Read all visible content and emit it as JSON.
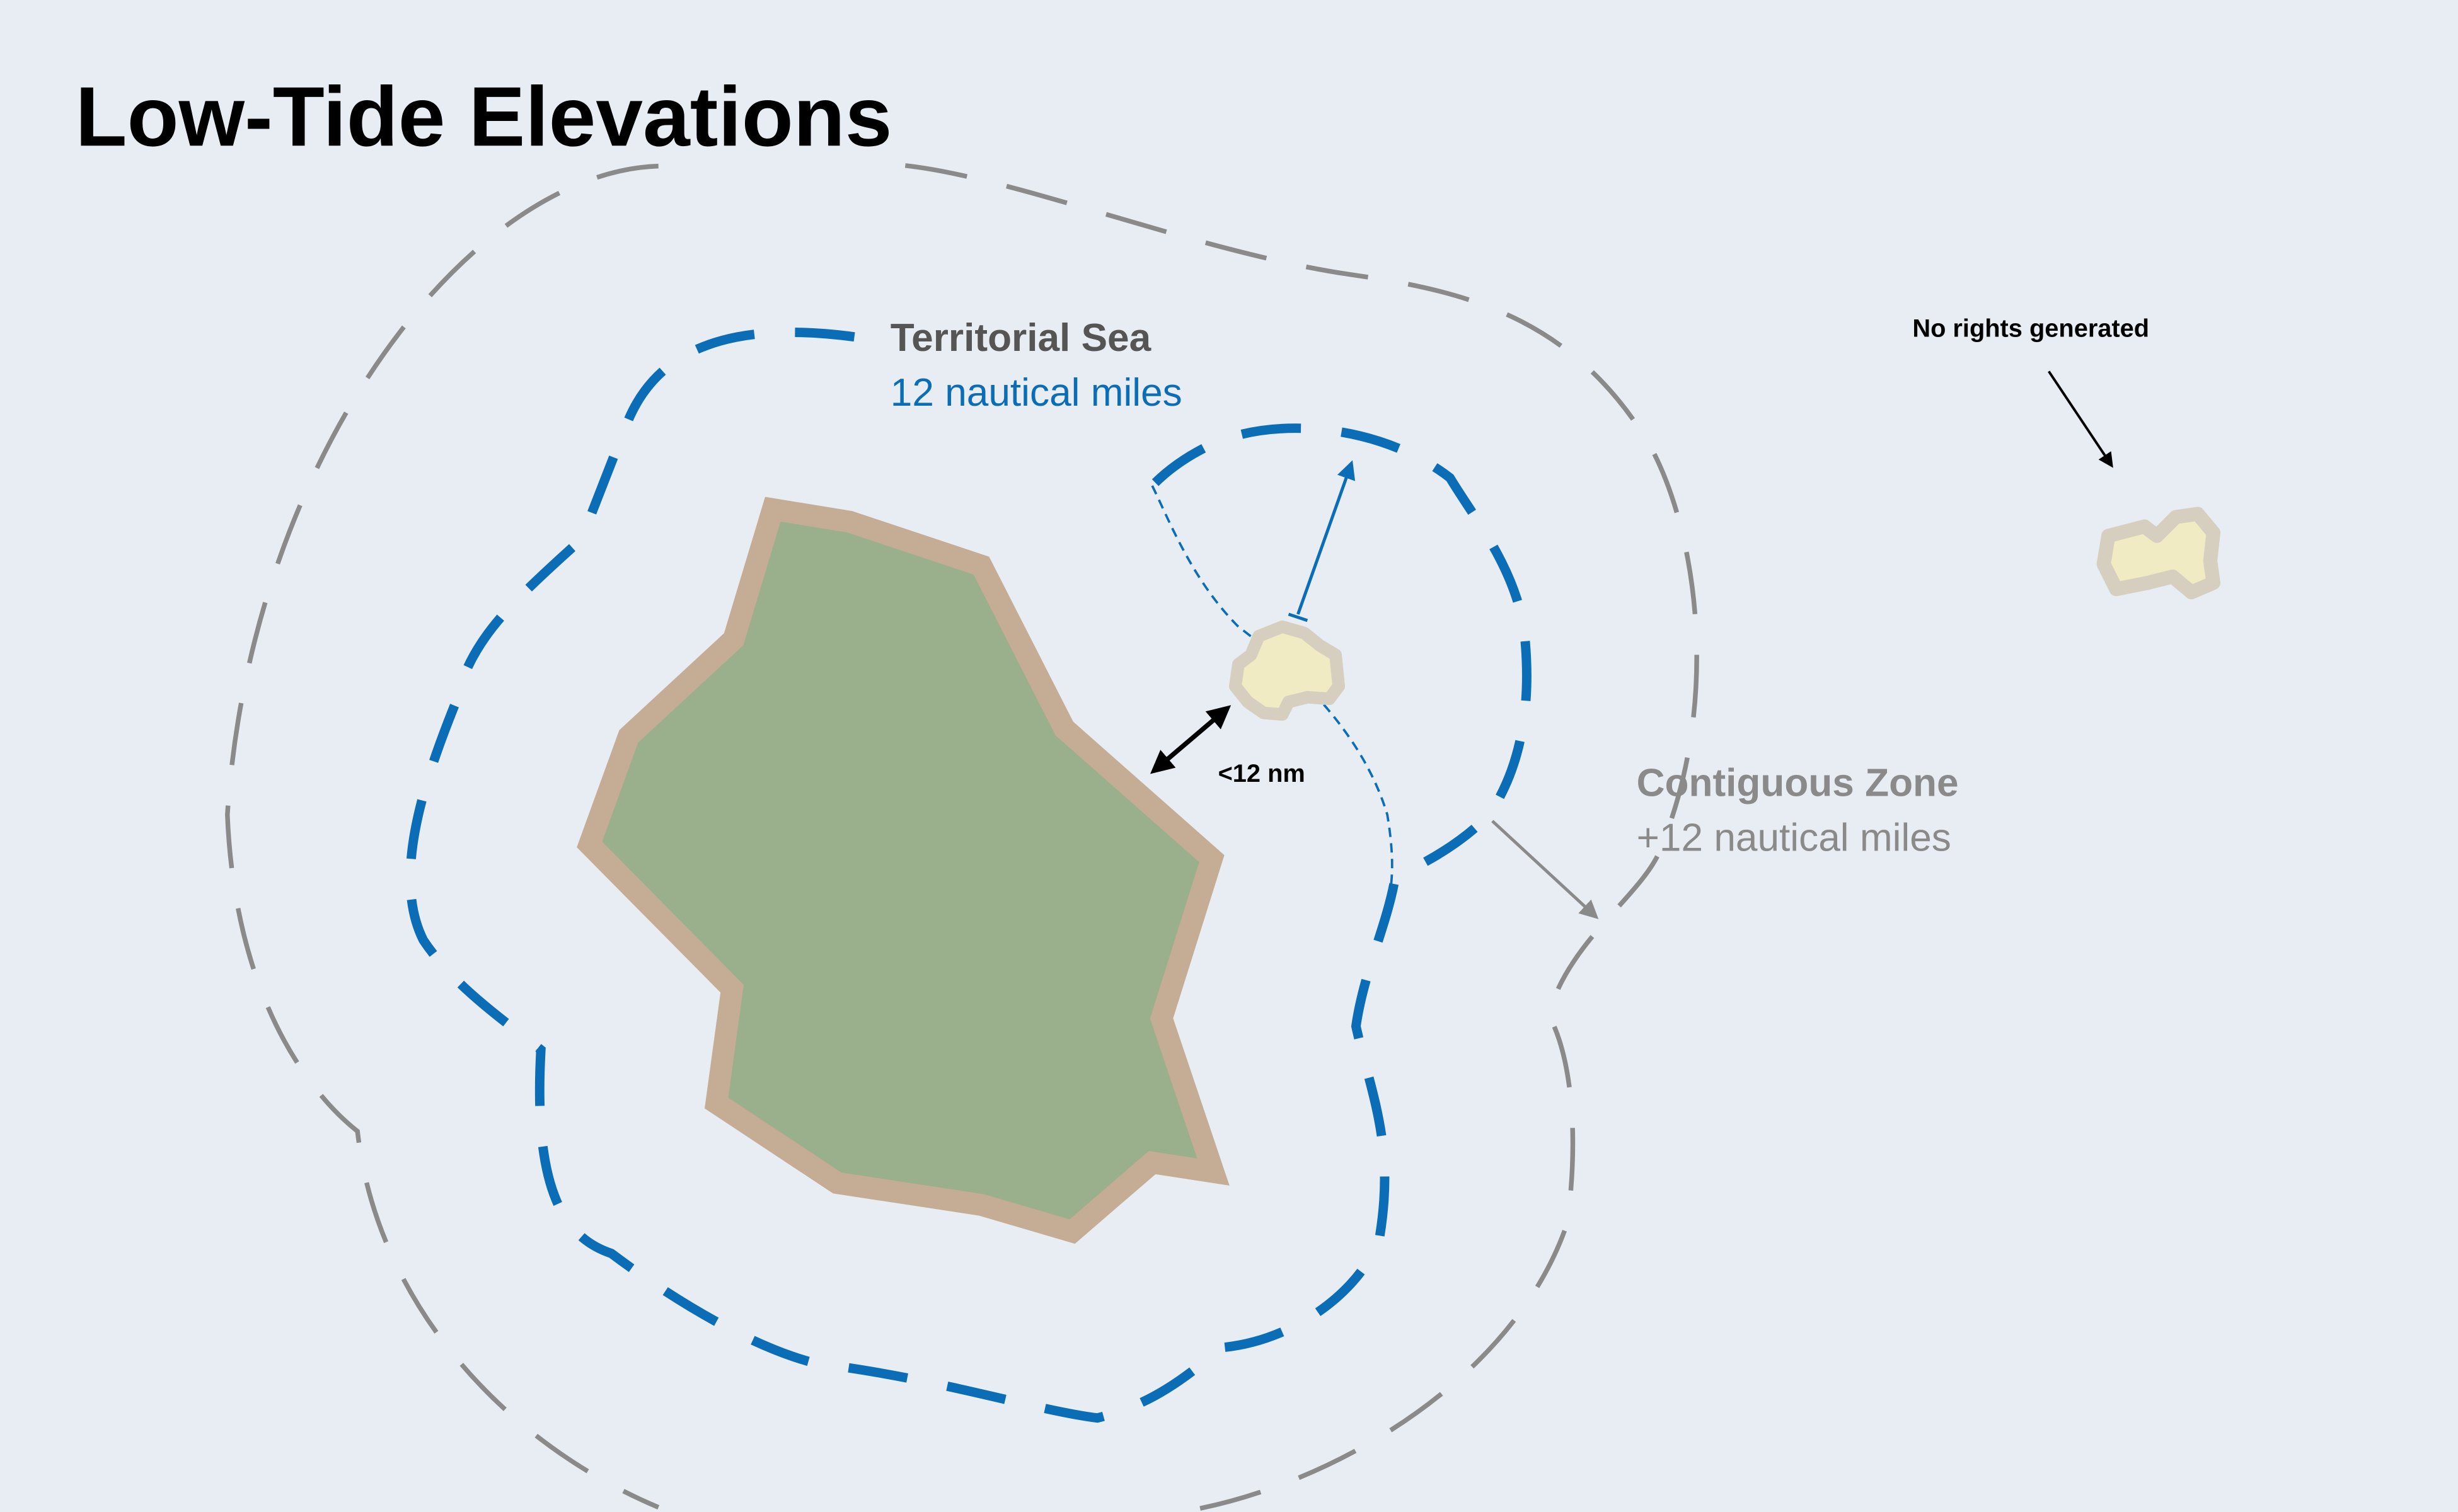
{
  "title": "Low-Tide Elevations",
  "territorial_sea": {
    "label": "Territorial Sea",
    "distance": "12 nautical miles",
    "color": "#0b6db6"
  },
  "contiguous_zone": {
    "label": "Contiguous Zone",
    "distance": "+12 nautical miles",
    "color": "#8a8a8a"
  },
  "distance_marker": {
    "label": "<12 nm"
  },
  "distant_elevation": {
    "label": "No rights generated"
  },
  "colors": {
    "background": "#e8edf3",
    "island_fill": "#9aaf8c",
    "island_outline": "#c4ad94",
    "elevation_fill": "#f0ebc2",
    "elevation_outline": "#d6cfc0",
    "title_text": "#000000",
    "label_dark": "#555555"
  }
}
